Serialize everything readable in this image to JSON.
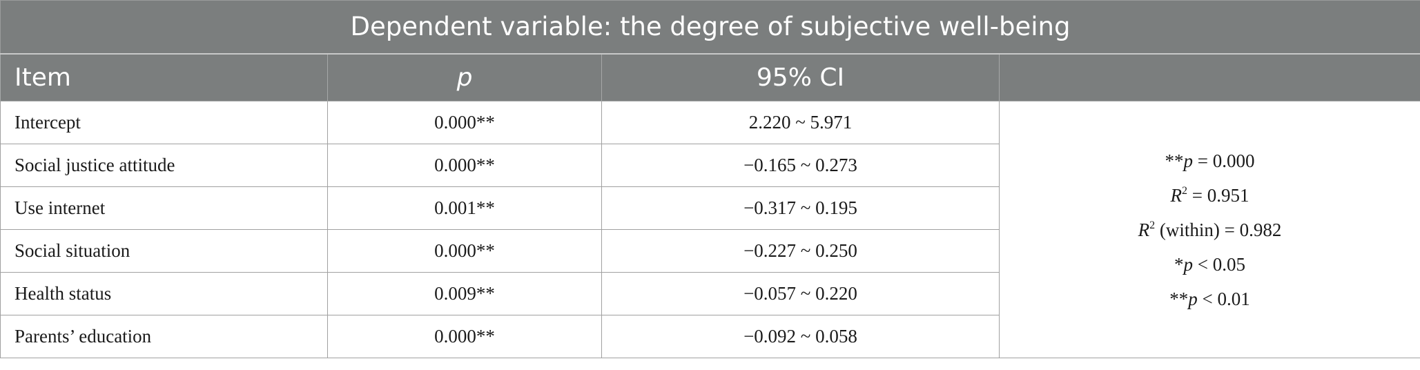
{
  "table": {
    "title": "Dependent variable: the degree of subjective well-being",
    "headers": {
      "item": "Item",
      "p": "p",
      "ci": "95% CI",
      "notes": ""
    },
    "rows": [
      {
        "item": "Intercept",
        "p": "0.000**",
        "ci": "2.220 ~ 5.971"
      },
      {
        "item": "Social justice attitude",
        "p": "0.000**",
        "ci": "−0.165 ~ 0.273"
      },
      {
        "item": "Use internet",
        "p": "0.001**",
        "ci": "−0.317 ~ 0.195"
      },
      {
        "item": "Social situation",
        "p": "0.000**",
        "ci": "−0.227 ~ 0.250"
      },
      {
        "item": "Health status",
        "p": "0.009**",
        "ci": "−0.057 ~ 0.220"
      },
      {
        "item": "Parents’ education",
        "p": "0.000**",
        "ci": "−0.092 ~ 0.058"
      }
    ],
    "notes": {
      "line1_stars": "**",
      "line1_var": "p",
      "line1_rest": " = 0.000",
      "line2_var": "R",
      "line2_sup": "2",
      "line2_rest": " = 0.951",
      "line3_var": "R",
      "line3_sup": "2",
      "line3_rest": " (within) = 0.982",
      "line4_stars": "*",
      "line4_var": "p",
      "line4_rest": " < 0.05",
      "line5_stars": "**",
      "line5_var": "p",
      "line5_rest": " < 0.01"
    }
  }
}
